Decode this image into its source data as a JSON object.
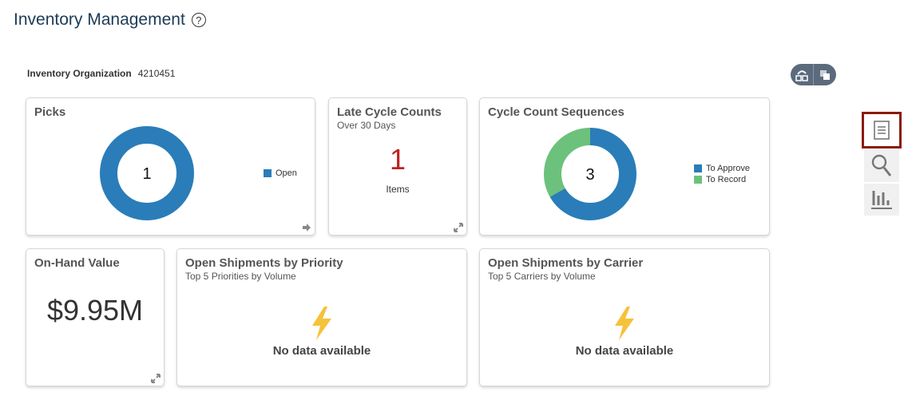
{
  "header": {
    "title": "Inventory Management",
    "help_icon": "help-circle-icon",
    "help_glyph": "?"
  },
  "org": {
    "label": "Inventory Organization",
    "value": "4210451"
  },
  "colors": {
    "blue": "#2a7db8",
    "green": "#6cc17c",
    "red": "#c02020",
    "bolt": "#f5c23a"
  },
  "cards": {
    "picks": {
      "title": "Picks",
      "center": "1",
      "legend": [
        {
          "label": "Open",
          "value": 1,
          "color": "#2a7db8"
        }
      ]
    },
    "late": {
      "title": "Late Cycle Counts",
      "subtitle": "Over 30 Days",
      "value": "1",
      "unit": "Items"
    },
    "ccs": {
      "title": "Cycle Count Sequences",
      "center": "3",
      "legend": [
        {
          "label": "To Approve",
          "value": 2,
          "color": "#2a7db8"
        },
        {
          "label": "To Record",
          "value": 1,
          "color": "#6cc17c"
        }
      ]
    },
    "onhand": {
      "title": "On-Hand Value",
      "value": "$9.95M"
    },
    "priority": {
      "title": "Open Shipments by Priority",
      "subtitle": "Top 5 Priorities by Volume",
      "empty": "No data available"
    },
    "carrier": {
      "title": "Open Shipments by Carrier",
      "subtitle": "Top 5 Carriers by Volume",
      "empty": "No data available"
    }
  }
}
